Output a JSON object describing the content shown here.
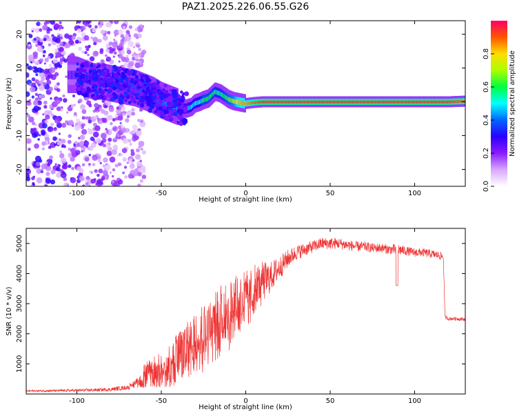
{
  "title": "PAZ1.2025.226.06.55.G26",
  "chart_data": [
    {
      "type": "heatmap",
      "xlabel": "Height of straight line (km)",
      "ylabel": "Frequency (Hz)",
      "xlim": [
        -130,
        130
      ],
      "ylim": [
        -25,
        24
      ],
      "xticks": [
        -100,
        -50,
        0,
        50,
        100
      ],
      "yticks": [
        -20,
        -10,
        0,
        10,
        20
      ],
      "grid": false,
      "colorbar": {
        "label": "Normalized spectral amplitude",
        "range": [
          0,
          1
        ],
        "ticks": [
          0.0,
          0.2,
          0.4,
          0.6,
          0.8
        ],
        "tick_labels": [
          "0.0",
          "0.2",
          "0.4",
          "0.6",
          "0.8"
        ]
      },
      "ridge": {
        "x": [
          -100,
          -95,
          -90,
          -85,
          -80,
          -75,
          -70,
          -65,
          -60,
          -55,
          -50,
          -45,
          -40,
          -38,
          -35,
          -32,
          -30,
          -27,
          -25,
          -22,
          -20,
          -18,
          -15,
          -12,
          -10,
          -7,
          -5,
          -2,
          0,
          5,
          10,
          20,
          30,
          40,
          50,
          60,
          70,
          80,
          90,
          100,
          110,
          120,
          130
        ],
        "y": [
          8,
          7,
          6,
          6,
          5.5,
          5,
          4.5,
          4,
          3,
          2,
          0.5,
          -0.5,
          -1.5,
          -2,
          -2,
          -1.5,
          -0.5,
          0,
          0.5,
          1,
          2,
          3,
          2.5,
          1.5,
          0.8,
          0.2,
          0,
          -0.3,
          -0.5,
          -0.2,
          0,
          0,
          0,
          0,
          0,
          0,
          0,
          0,
          0,
          0,
          0,
          0,
          0.2
        ],
        "amplitude": [
          0.25,
          0.3,
          0.3,
          0.3,
          0.3,
          0.3,
          0.35,
          0.4,
          0.4,
          0.4,
          0.4,
          0.45,
          0.45,
          0.5,
          0.45,
          0.5,
          0.5,
          0.5,
          0.6,
          0.6,
          0.6,
          0.55,
          0.55,
          0.6,
          0.65,
          0.7,
          0.8,
          0.85,
          0.85,
          0.9,
          0.95,
          0.95,
          0.95,
          0.95,
          0.95,
          0.95,
          0.95,
          0.95,
          0.95,
          0.95,
          0.95,
          0.95,
          0.9
        ]
      },
      "scatter_region": {
        "x": [
          -130,
          -70
        ],
        "y": [
          -25,
          24
        ],
        "amplitude": [
          0.05,
          0.35
        ]
      }
    },
    {
      "type": "line",
      "xlabel": "Height of straight line (km)",
      "ylabel": "SNR (10 * v/v)",
      "xlim": [
        -130,
        130
      ],
      "ylim": [
        0,
        5500
      ],
      "xticks": [
        -100,
        -50,
        0,
        50,
        100
      ],
      "yticks": [
        1000,
        2000,
        3000,
        4000,
        5000
      ],
      "grid": false,
      "series": [
        {
          "color": "#ee3333",
          "x": [
            -130,
            -110,
            -90,
            -80,
            -70,
            -65,
            -60,
            -55,
            -50,
            -45,
            -40,
            -35,
            -30,
            -25,
            -20,
            -15,
            -10,
            -5,
            0,
            5,
            10,
            15,
            20,
            25,
            30,
            35,
            40,
            45,
            50,
            55,
            60,
            65,
            70,
            75,
            80,
            85,
            90,
            95,
            100,
            105,
            110,
            115,
            117,
            118,
            120,
            125,
            130
          ],
          "y": [
            100,
            110,
            130,
            150,
            220,
            350,
            600,
            750,
            800,
            900,
            1200,
            1500,
            1800,
            1900,
            2100,
            2400,
            2600,
            2900,
            3100,
            3400,
            3700,
            3900,
            4200,
            4500,
            4700,
            4800,
            4900,
            5000,
            5000,
            5000,
            4950,
            4900,
            4900,
            4850,
            4850,
            4800,
            4800,
            4750,
            4700,
            4700,
            4650,
            4600,
            4550,
            2550,
            2500,
            2500,
            2480
          ],
          "noise": [
            30,
            40,
            50,
            60,
            80,
            150,
            400,
            500,
            600,
            700,
            900,
            1000,
            1100,
            1200,
            1200,
            1200,
            1200,
            1100,
            1000,
            900,
            700,
            500,
            400,
            300,
            250,
            220,
            200,
            200,
            200,
            180,
            180,
            170,
            160,
            160,
            160,
            160,
            200,
            150,
            150,
            140,
            140,
            130,
            130,
            60,
            60,
            60,
            60
          ]
        }
      ]
    }
  ]
}
